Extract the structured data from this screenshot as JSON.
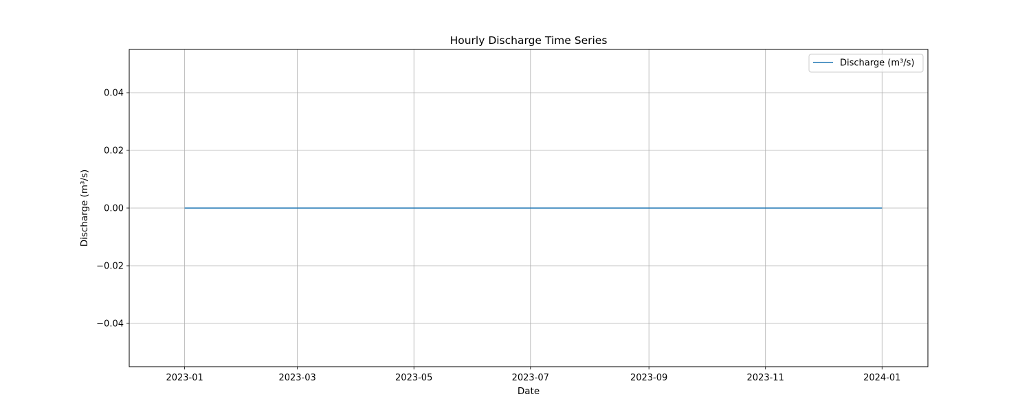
{
  "chart_data": {
    "type": "line",
    "title": "Hourly Discharge Time Series",
    "xlabel": "Date",
    "ylabel": "Discharge (m³/s)",
    "x_type": "date",
    "xlim": [
      "2022-12-03",
      "2024-01-25"
    ],
    "ylim": [
      -0.055,
      0.055
    ],
    "x_ticks": [
      "2023-01-01",
      "2023-03-01",
      "2023-05-01",
      "2023-07-01",
      "2023-09-01",
      "2023-11-01",
      "2024-01-01"
    ],
    "x_tick_labels": [
      "2023-01",
      "2023-03",
      "2023-05",
      "2023-07",
      "2023-09",
      "2023-11",
      "2024-01"
    ],
    "y_ticks": [
      0.04,
      0.02,
      0.0,
      -0.02,
      -0.04
    ],
    "y_tick_labels": [
      "0.04",
      "0.02",
      "0.00",
      "−0.02",
      "−0.04"
    ],
    "grid": true,
    "legend_position": "top-right",
    "series": [
      {
        "name": "Discharge (m³/s)",
        "color": "#1f77b4",
        "x": [
          "2023-01-01",
          "2024-01-01"
        ],
        "y": [
          0.0,
          0.0
        ]
      }
    ]
  }
}
